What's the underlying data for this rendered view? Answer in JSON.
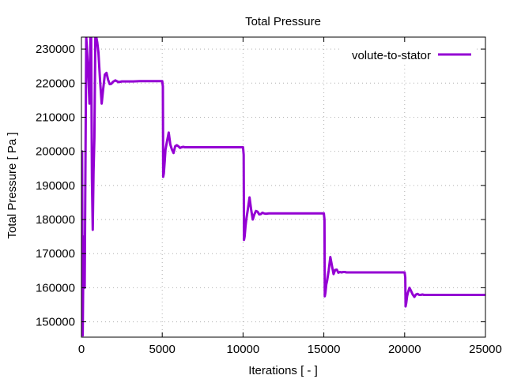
{
  "chart_data": {
    "type": "line",
    "title": "Total Pressure",
    "xlabel": "Iterations [ - ]",
    "ylabel": "Total Pressure [ Pa ]",
    "xlim": [
      0,
      25000
    ],
    "ylim": [
      145500,
      233500
    ],
    "x_ticks": [
      0,
      5000,
      10000,
      15000,
      20000,
      25000
    ],
    "y_ticks": [
      150000,
      160000,
      170000,
      180000,
      190000,
      200000,
      210000,
      220000,
      230000
    ],
    "grid": true,
    "legend_position": "top-right",
    "series": [
      {
        "name": "volute-to-stator",
        "color": "#9400d3",
        "x": [
          0,
          40,
          80,
          130,
          200,
          300,
          400,
          500,
          560,
          600,
          650,
          700,
          750,
          800,
          860,
          920,
          980,
          1050,
          1150,
          1250,
          1350,
          1450,
          1550,
          1650,
          1750,
          1850,
          1950,
          2100,
          2300,
          2500,
          2800,
          3200,
          3600,
          4000,
          4500,
          5000,
          5040,
          5060,
          5100,
          5150,
          5200,
          5300,
          5400,
          5500,
          5600,
          5700,
          5800,
          5900,
          6000,
          6100,
          6200,
          6300,
          6400,
          6600,
          6800,
          7000,
          8000,
          9000,
          10000,
          10040,
          10060,
          10100,
          10150,
          10200,
          10300,
          10400,
          10500,
          10600,
          10700,
          10800,
          10900,
          11000,
          11100,
          11200,
          11300,
          11400,
          11600,
          11800,
          12000,
          13000,
          14000,
          15000,
          15040,
          15060,
          15100,
          15150,
          15200,
          15300,
          15400,
          15500,
          15600,
          15700,
          15800,
          15900,
          16000,
          16100,
          16200,
          16300,
          16400,
          16600,
          16800,
          17000,
          18000,
          19000,
          20000,
          20040,
          20060,
          20100,
          20150,
          20200,
          20300,
          20400,
          20500,
          20600,
          20700,
          20800,
          20900,
          21000,
          21100,
          21200,
          21300,
          21400,
          21600,
          21800,
          22000,
          23000,
          24000,
          25000
        ],
        "y": [
          146000,
          200000,
          146000,
          175000,
          160000,
          233500,
          225000,
          214000,
          233500,
          233500,
          192000,
          177000,
          194000,
          204000,
          233500,
          233500,
          232000,
          229000,
          221000,
          214000,
          218500,
          222500,
          223000,
          221000,
          219700,
          219800,
          220400,
          220800,
          220300,
          220500,
          220500,
          220500,
          220600,
          220600,
          220600,
          220600,
          219000,
          192500,
          193500,
          197000,
          200500,
          203000,
          205500,
          202000,
          200500,
          199500,
          201500,
          201800,
          201500,
          201000,
          201200,
          201300,
          201200,
          201200,
          201200,
          201200,
          201200,
          201200,
          201200,
          199000,
          174000,
          175000,
          178000,
          180000,
          183000,
          186500,
          183000,
          180000,
          181500,
          182500,
          182300,
          181500,
          181600,
          182000,
          181800,
          181700,
          181800,
          181800,
          181800,
          181800,
          181800,
          181800,
          180000,
          157500,
          158500,
          161000,
          162000,
          165000,
          169000,
          166500,
          164000,
          165200,
          165300,
          164400,
          164600,
          164500,
          164600,
          164600,
          164500,
          164500,
          164500,
          164500,
          164500,
          164500,
          164500,
          163000,
          154500,
          155500,
          157500,
          158500,
          160000,
          159000,
          158000,
          157300,
          158000,
          158200,
          157900,
          157900,
          158000,
          157900,
          157900,
          157900,
          157900,
          157900,
          157900,
          157900,
          157900,
          157900
        ]
      }
    ]
  }
}
